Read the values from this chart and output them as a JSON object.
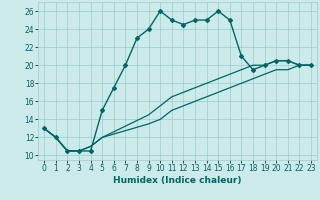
{
  "xlabel": "Humidex (Indice chaleur)",
  "bg_color": "#cceaea",
  "line_color": "#006666",
  "grid_color": "#99cccc",
  "xlim": [
    -0.5,
    23.5
  ],
  "ylim": [
    9.5,
    27
  ],
  "xticks": [
    0,
    1,
    2,
    3,
    4,
    5,
    6,
    7,
    8,
    9,
    10,
    11,
    12,
    13,
    14,
    15,
    16,
    17,
    18,
    19,
    20,
    21,
    22,
    23
  ],
  "yticks": [
    10,
    12,
    14,
    16,
    18,
    20,
    22,
    24,
    26
  ],
  "curve1_x": [
    0,
    1,
    2,
    3,
    4,
    5,
    6,
    7,
    8,
    9,
    10,
    11,
    12,
    13,
    14,
    15,
    16,
    17,
    18,
    19,
    20,
    21,
    22,
    23
  ],
  "curve1_y": [
    13,
    12,
    10.5,
    10.5,
    10.5,
    15,
    17.5,
    20,
    23,
    24,
    26,
    25,
    24.5,
    25,
    25,
    26,
    25,
    21,
    19.5,
    20,
    20.5,
    20.5,
    20,
    20
  ],
  "curve2_x": [
    0,
    1,
    2,
    3,
    4,
    5,
    9,
    10,
    11,
    12,
    13,
    14,
    15,
    16,
    17,
    18,
    19,
    20,
    21,
    22,
    23
  ],
  "curve2_y": [
    13,
    12,
    10.5,
    10.5,
    11,
    12,
    14.5,
    15.5,
    16.5,
    17,
    17.5,
    18,
    18.5,
    19,
    19.5,
    20,
    20,
    20.5,
    20.5,
    20,
    20
  ],
  "curve3_x": [
    0,
    1,
    2,
    3,
    4,
    5,
    9,
    10,
    11,
    12,
    13,
    14,
    15,
    16,
    17,
    18,
    19,
    20,
    21,
    22,
    23
  ],
  "curve3_y": [
    13,
    12,
    10.5,
    10.5,
    11,
    12,
    13.5,
    14,
    15,
    15.5,
    16,
    16.5,
    17,
    17.5,
    18,
    18.5,
    19,
    19.5,
    19.5,
    20,
    20
  ]
}
